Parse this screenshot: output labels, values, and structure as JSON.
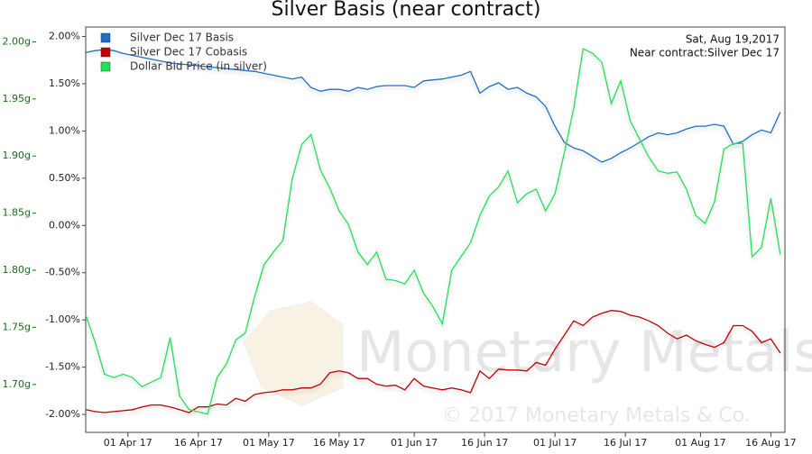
{
  "chart_data": {
    "type": "line",
    "title": "Silver Basis (near contract)",
    "annotations": [
      "Sat, Aug 19,2017",
      "Near contract:Silver Dec 17"
    ],
    "watermark": [
      "Monetary Metals",
      "© 2017 Monetary Metals & Co."
    ],
    "legend": "top-left",
    "x": [
      "2017-03-23",
      "2017-03-25",
      "2017-03-27",
      "2017-03-29",
      "2017-03-31",
      "2017-04-02",
      "2017-04-04",
      "2017-04-06",
      "2017-04-08",
      "2017-04-10",
      "2017-04-12",
      "2017-04-14",
      "2017-04-16",
      "2017-04-18",
      "2017-04-20",
      "2017-04-22",
      "2017-04-24",
      "2017-04-26",
      "2017-04-28",
      "2017-04-30",
      "2017-05-02",
      "2017-05-04",
      "2017-05-06",
      "2017-05-08",
      "2017-05-10",
      "2017-05-12",
      "2017-05-14",
      "2017-05-16",
      "2017-05-18",
      "2017-05-20",
      "2017-05-22",
      "2017-05-24",
      "2017-05-26",
      "2017-05-28",
      "2017-05-30",
      "2017-06-01",
      "2017-06-03",
      "2017-06-05",
      "2017-06-07",
      "2017-06-09",
      "2017-06-11",
      "2017-06-13",
      "2017-06-15",
      "2017-06-17",
      "2017-06-19",
      "2017-06-21",
      "2017-06-23",
      "2017-06-25",
      "2017-06-27",
      "2017-06-29",
      "2017-07-01",
      "2017-07-03",
      "2017-07-05",
      "2017-07-07",
      "2017-07-09",
      "2017-07-11",
      "2017-07-13",
      "2017-07-15",
      "2017-07-17",
      "2017-07-19",
      "2017-07-21",
      "2017-07-23",
      "2017-07-25",
      "2017-07-27",
      "2017-07-29",
      "2017-07-31",
      "2017-08-02",
      "2017-08-04",
      "2017-08-06",
      "2017-08-08",
      "2017-08-10",
      "2017-08-12",
      "2017-08-14",
      "2017-08-16",
      "2017-08-18"
    ],
    "xlim": [
      "2017-03-23",
      "2017-08-19"
    ],
    "xticks": [
      {
        "value": "2017-04-01",
        "label": "01 Apr 17"
      },
      {
        "value": "2017-04-16",
        "label": "16 Apr 17"
      },
      {
        "value": "2017-05-01",
        "label": "01 May 17"
      },
      {
        "value": "2017-05-16",
        "label": "16 May 17"
      },
      {
        "value": "2017-06-01",
        "label": "01 Jun 17"
      },
      {
        "value": "2017-06-16",
        "label": "16 Jun 17"
      },
      {
        "value": "2017-07-01",
        "label": "01 Jul 17"
      },
      {
        "value": "2017-07-16",
        "label": "16 Jul 17"
      },
      {
        "value": "2017-08-01",
        "label": "01 Aug 17"
      },
      {
        "value": "2017-08-16",
        "label": "16 Aug 17"
      }
    ],
    "ylim": [
      -2.19,
      2.1
    ],
    "yticks": [
      {
        "value": 2,
        "label": "2.00%"
      },
      {
        "value": 1.5,
        "label": "1.50%"
      },
      {
        "value": 1,
        "label": "1.00%"
      },
      {
        "value": 0.5,
        "label": "0.50%"
      },
      {
        "value": 0,
        "label": "0.00%"
      },
      {
        "value": -0.5,
        "label": "-0.50%"
      },
      {
        "value": -1,
        "label": "-1.00%"
      },
      {
        "value": -1.5,
        "label": "-1.50%"
      },
      {
        "value": -2,
        "label": "-2.00%"
      }
    ],
    "y2lim": [
      1.658,
      2.013
    ],
    "y2ticks": [
      {
        "value": 2,
        "label": "2.00g"
      },
      {
        "value": 1.95,
        "label": "1.95g"
      },
      {
        "value": 1.9,
        "label": "1.90g"
      },
      {
        "value": 1.85,
        "label": "1.85g"
      },
      {
        "value": 1.8,
        "label": "1.80g"
      },
      {
        "value": 1.75,
        "label": "1.75g"
      },
      {
        "value": 1.7,
        "label": "1.70g"
      }
    ],
    "series": [
      {
        "name": "Silver Dec 17 Basis",
        "color": "#1f6fc4",
        "values": [
          1.83,
          1.85,
          1.86,
          1.85,
          1.82,
          1.8,
          1.78,
          1.76,
          1.74,
          1.72,
          1.71,
          1.7,
          1.69,
          1.68,
          1.67,
          1.66,
          1.65,
          1.64,
          1.63,
          1.61,
          1.59,
          1.57,
          1.55,
          1.57,
          1.46,
          1.42,
          1.44,
          1.44,
          1.42,
          1.46,
          1.44,
          1.47,
          1.48,
          1.48,
          1.48,
          1.46,
          1.53,
          1.54,
          1.55,
          1.57,
          1.59,
          1.63,
          1.4,
          1.47,
          1.51,
          1.44,
          1.46,
          1.4,
          1.36,
          1.26,
          1.05,
          0.88,
          0.82,
          0.79,
          0.73,
          0.67,
          0.71,
          0.77,
          0.82,
          0.88,
          0.94,
          0.98,
          0.96,
          0.98,
          1.02,
          1.05,
          1.05,
          1.07,
          1.05,
          0.86,
          0.89,
          0.96,
          1.01,
          0.98,
          1.2
        ]
      },
      {
        "name": "Silver Dec 17 Cobasis",
        "color": "#c00000",
        "values": [
          -1.95,
          -1.97,
          -1.98,
          -1.97,
          -1.96,
          -1.95,
          -1.92,
          -1.9,
          -1.9,
          -1.92,
          -1.95,
          -1.98,
          -1.92,
          -1.92,
          -1.89,
          -1.9,
          -1.83,
          -1.86,
          -1.79,
          -1.77,
          -1.76,
          -1.74,
          -1.74,
          -1.72,
          -1.72,
          -1.68,
          -1.56,
          -1.54,
          -1.56,
          -1.62,
          -1.62,
          -1.68,
          -1.7,
          -1.69,
          -1.74,
          -1.62,
          -1.7,
          -1.72,
          -1.74,
          -1.72,
          -1.74,
          -1.77,
          -1.54,
          -1.62,
          -1.52,
          -1.53,
          -1.53,
          -1.54,
          -1.45,
          -1.48,
          -1.31,
          -1.16,
          -1.01,
          -1.06,
          -0.97,
          -0.93,
          -0.9,
          -0.91,
          -0.95,
          -0.97,
          -1.01,
          -1.06,
          -1.14,
          -1.2,
          -1.16,
          -1.22,
          -1.26,
          -1.29,
          -1.24,
          -1.06,
          -1.06,
          -1.12,
          -1.24,
          -1.2,
          -1.35
        ]
      },
      {
        "name": "Dollar Bid Price (in silver)",
        "color": "#22e05a",
        "axis": "y2",
        "values": [
          1.761,
          1.737,
          1.709,
          1.706,
          1.709,
          1.706,
          1.698,
          1.702,
          1.706,
          1.741,
          1.69,
          1.678,
          1.676,
          1.674,
          1.706,
          1.718,
          1.739,
          1.745,
          1.777,
          1.805,
          1.816,
          1.826,
          1.88,
          1.91,
          1.919,
          1.888,
          1.872,
          1.852,
          1.84,
          1.816,
          1.805,
          1.816,
          1.792,
          1.791,
          1.788,
          1.8,
          1.78,
          1.768,
          1.753,
          1.8,
          1.812,
          1.824,
          1.848,
          1.865,
          1.873,
          1.887,
          1.859,
          1.867,
          1.871,
          1.852,
          1.867,
          1.903,
          1.942,
          1.994,
          1.99,
          1.982,
          1.946,
          1.966,
          1.931,
          1.915,
          1.899,
          1.887,
          1.885,
          1.886,
          1.871,
          1.848,
          1.841,
          1.86,
          1.906,
          1.911,
          1.911,
          1.812,
          1.82,
          1.863,
          1.814
        ]
      }
    ]
  }
}
